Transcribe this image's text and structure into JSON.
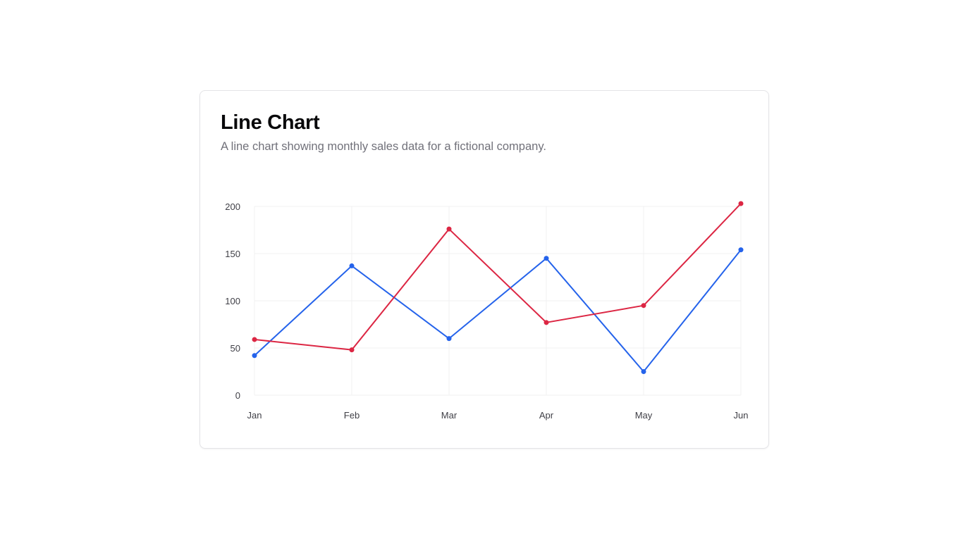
{
  "card": {
    "title": "Line Chart",
    "subtitle": "A line chart showing monthly sales data for a fictional company."
  },
  "chart_data": {
    "type": "line",
    "categories": [
      "Jan",
      "Feb",
      "Mar",
      "Apr",
      "May",
      "Jun"
    ],
    "series": [
      {
        "color": "#2563eb",
        "values": [
          42,
          137,
          60,
          145,
          25,
          154
        ]
      },
      {
        "color": "#dc2643",
        "values": [
          59,
          48,
          176,
          77,
          95,
          203
        ]
      }
    ],
    "y_ticks": [
      0,
      50,
      100,
      150,
      200
    ],
    "ylim": [
      0,
      200
    ],
    "grid": true,
    "title": "",
    "xlabel": "",
    "ylabel": ""
  }
}
